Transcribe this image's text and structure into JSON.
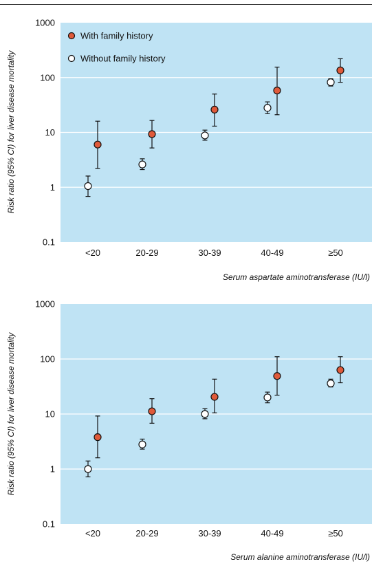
{
  "colors": {
    "panel_background": "#bfe3f4",
    "gridline": "#ffffff",
    "with_family_history": "#e05a3a",
    "without_family_history": "#ffffff",
    "marker_outline": "#111111"
  },
  "legend": {
    "items": [
      {
        "label": "With family history",
        "marker": "filled-red-circle"
      },
      {
        "label": "Without family history",
        "marker": "open-white-circle"
      }
    ]
  },
  "chart_data": [
    {
      "type": "scatter",
      "error_bars": true,
      "y_scale": "log",
      "ylim": [
        0.1,
        1000
      ],
      "yticks": [
        "0.1",
        "1",
        "10",
        "100",
        "1000"
      ],
      "categories": [
        "<20",
        "20-29",
        "30-39",
        "40-49",
        "≥50"
      ],
      "xlabel": "Serum aspartate aminotransferase (IU/l)",
      "ylabel": "Risk ratio (95% CI) for liver disease mortality",
      "grid": true,
      "legend_position": "top-left",
      "series": [
        {
          "name": "Without family history",
          "values": [
            1.05,
            2.6,
            8.8,
            28,
            82
          ],
          "lower": [
            0.68,
            2.1,
            7.2,
            22,
            70
          ],
          "upper": [
            1.6,
            3.3,
            11,
            36,
            95
          ]
        },
        {
          "name": "With family history",
          "values": [
            6.0,
            9.3,
            26,
            58,
            135
          ],
          "lower": [
            2.2,
            5.2,
            13,
            21,
            82
          ],
          "upper": [
            16,
            16.5,
            50,
            155,
            220
          ]
        }
      ]
    },
    {
      "type": "scatter",
      "error_bars": true,
      "y_scale": "log",
      "ylim": [
        0.1,
        1000
      ],
      "yticks": [
        "0.1",
        "1",
        "10",
        "100",
        "1000"
      ],
      "categories": [
        "<20",
        "20-29",
        "30-39",
        "40-49",
        "≥50"
      ],
      "xlabel": "Serum alanine aminotransferase (IU/l)",
      "ylabel": "Risk ratio (95% CI) for liver disease mortality",
      "grid": true,
      "series": [
        {
          "name": "Without family history",
          "values": [
            1.0,
            2.8,
            10,
            20,
            36
          ],
          "lower": [
            0.72,
            2.3,
            8.2,
            16,
            31
          ],
          "upper": [
            1.4,
            3.5,
            12.5,
            25,
            43
          ]
        },
        {
          "name": "With family history",
          "values": [
            3.8,
            11.2,
            20.5,
            49,
            63
          ],
          "lower": [
            1.6,
            6.8,
            10.5,
            22,
            37
          ],
          "upper": [
            9.2,
            19,
            43,
            110,
            110
          ]
        }
      ]
    }
  ]
}
